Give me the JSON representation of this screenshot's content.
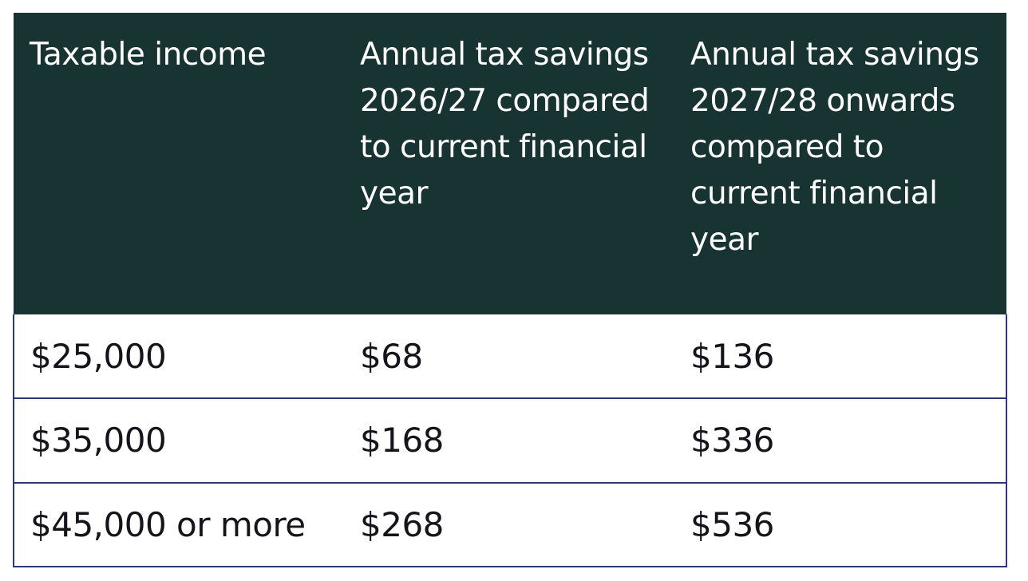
{
  "table": {
    "headers": [
      "Taxable income",
      "Annual tax savings 2026/27 compared to current financial year",
      "Annual tax savings 2027/28 onwards compared to current financial year"
    ],
    "rows": [
      [
        "$25,000",
        "$68",
        "$136"
      ],
      [
        "$35,000",
        "$168",
        "$336"
      ],
      [
        "$45,000 or more",
        "$268",
        "$536"
      ]
    ]
  },
  "colors": {
    "header_background": "#183432",
    "header_text": "#ffffff",
    "border": "#2a3a78",
    "body_text": "#14141a"
  }
}
